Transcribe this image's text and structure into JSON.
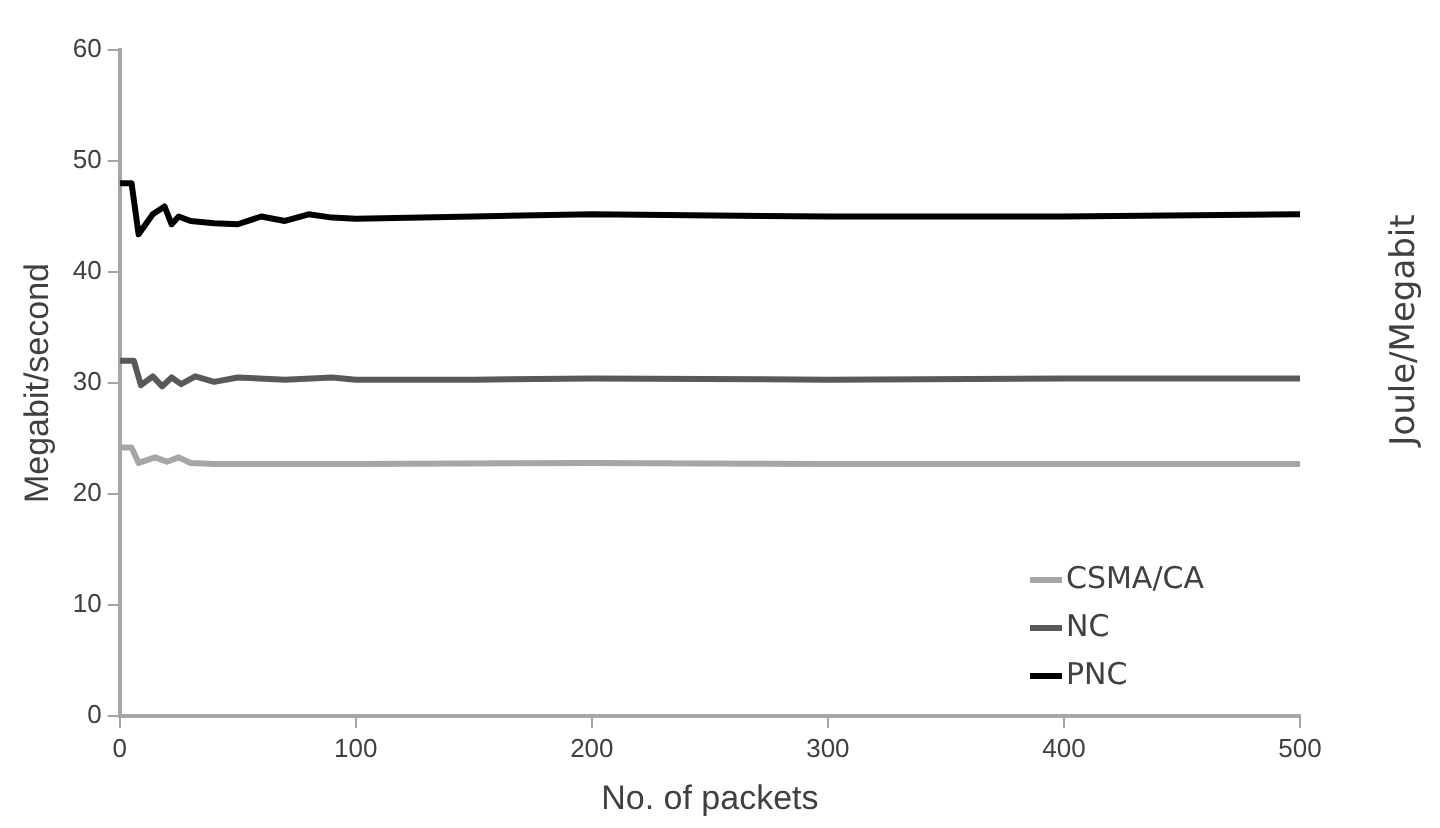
{
  "chart_data": [
    {
      "type": "line",
      "xlabel": "No. of packets",
      "ylabel": "Megabit/second",
      "xlim": [
        0,
        500
      ],
      "xticks": [
        0,
        100,
        200,
        300,
        400,
        500
      ],
      "ylim": [
        0,
        60
      ],
      "yticks": [
        0,
        10,
        20,
        30,
        40,
        50,
        60
      ],
      "grid": false,
      "legend": "bottom right",
      "marker": "none",
      "line_style": "solid",
      "series": [
        {
          "name": "CSMA/CA",
          "color": "#a6a6a6",
          "x": [
            0,
            5,
            8,
            15,
            20,
            25,
            30,
            40,
            60,
            100,
            200,
            300,
            400,
            500
          ],
          "values": [
            24.2,
            24.2,
            22.8,
            23.3,
            22.9,
            23.3,
            22.8,
            22.7,
            22.7,
            22.7,
            22.8,
            22.7,
            22.7,
            22.7
          ]
        },
        {
          "name": "NC",
          "color": "#595959",
          "x": [
            0,
            6,
            9,
            14,
            18,
            22,
            26,
            32,
            40,
            50,
            70,
            90,
            100,
            150,
            200,
            300,
            400,
            500
          ],
          "values": [
            32,
            32,
            29.8,
            30.6,
            29.7,
            30.5,
            29.9,
            30.6,
            30.1,
            30.5,
            30.3,
            30.5,
            30.3,
            30.3,
            30.4,
            30.3,
            30.4,
            30.4
          ]
        },
        {
          "name": "PNC",
          "color": "#000000",
          "x": [
            0,
            5,
            8,
            14,
            19,
            22,
            25,
            30,
            40,
            50,
            60,
            70,
            80,
            90,
            100,
            150,
            200,
            300,
            400,
            500
          ],
          "values": [
            48,
            48,
            43.4,
            45.2,
            45.9,
            44.3,
            45,
            44.6,
            44.4,
            44.3,
            45,
            44.6,
            45.2,
            44.9,
            44.8,
            45,
            45.2,
            45,
            45,
            45.2
          ]
        }
      ]
    },
    {
      "type": "other",
      "ylabel": "Joule/Megabit"
    }
  ]
}
